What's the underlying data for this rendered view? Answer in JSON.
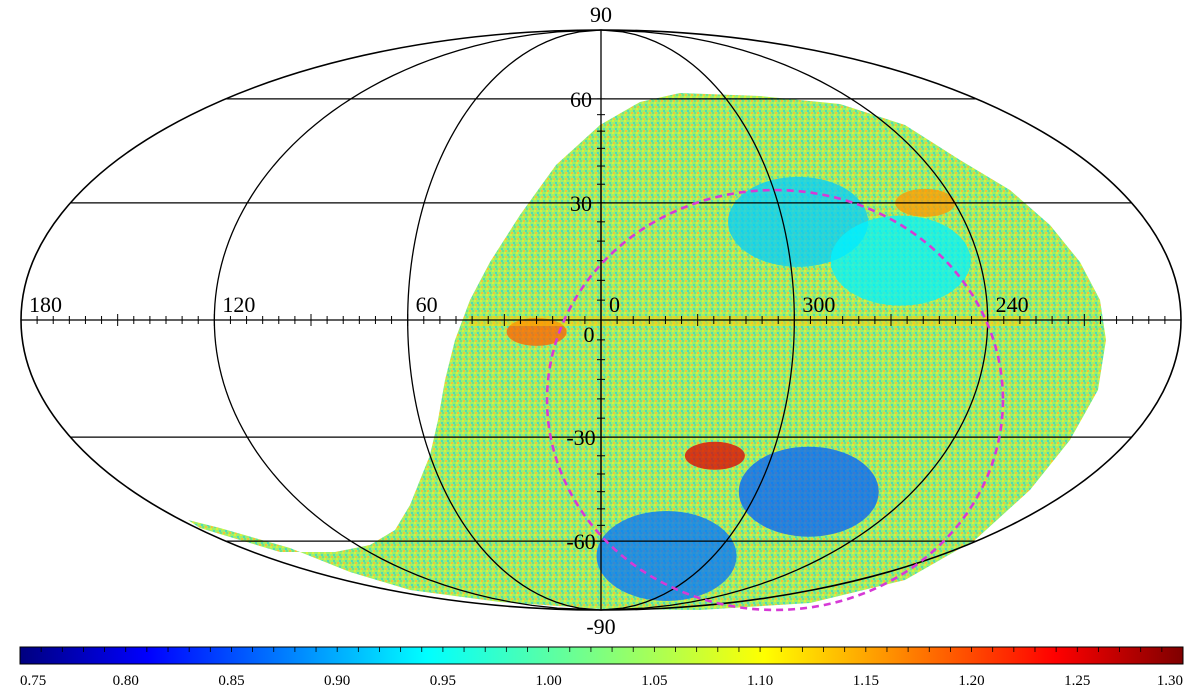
{
  "chart_data": {
    "type": "heatmap",
    "projection": "mollweide",
    "title": "",
    "longitude_labels": [
      "180",
      "120",
      "60",
      "0",
      "300",
      "240"
    ],
    "longitude_values": [
      180,
      120,
      60,
      0,
      300,
      240
    ],
    "latitude_labels": [
      "90",
      "60",
      "30",
      "0",
      "-30",
      "-60",
      "-90"
    ],
    "latitude_values": [
      90,
      60,
      30,
      0,
      -30,
      -60,
      -90
    ],
    "colorbar": {
      "min": 0.75,
      "max": 1.3,
      "tick_labels": [
        "0.75",
        "0.80",
        "0.85",
        "0.90",
        "0.95",
        "1.00",
        "1.05",
        "1.10",
        "1.15",
        "1.20",
        "1.25",
        "1.30"
      ],
      "tick_values": [
        0.75,
        0.8,
        0.85,
        0.9,
        0.95,
        1.0,
        1.05,
        1.1,
        1.15,
        1.2,
        1.25,
        1.3
      ],
      "colormap": "jet"
    },
    "typical_value": 1.05,
    "low_value_regions": [
      {
        "lon": 325,
        "lat": -65,
        "value": 0.88
      },
      {
        "lon": 280,
        "lat": -45,
        "value": 0.87
      },
      {
        "lon": 295,
        "lat": 25,
        "value": 0.93
      },
      {
        "lon": 265,
        "lat": 15,
        "value": 0.95
      }
    ],
    "high_value_regions": [
      {
        "lon": 20,
        "lat": -3,
        "value": 1.18
      },
      {
        "lon": 320,
        "lat": -35,
        "value": 1.25
      },
      {
        "lon": 250,
        "lat": 30,
        "value": 1.15
      }
    ],
    "dashed_circle_color": "#d63ad6"
  }
}
